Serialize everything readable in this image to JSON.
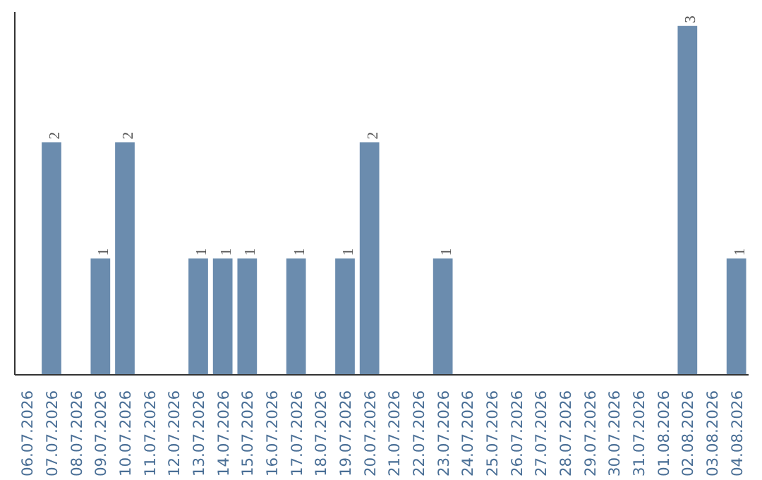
{
  "chart_data": {
    "type": "bar",
    "categories": [
      "06.07.2026",
      "07.07.2026",
      "08.07.2026",
      "09.07.2026",
      "10.07.2026",
      "11.07.2026",
      "12.07.2026",
      "13.07.2026",
      "14.07.2026",
      "15.07.2026",
      "16.07.2026",
      "17.07.2026",
      "18.07.2026",
      "19.07.2026",
      "20.07.2026",
      "21.07.2026",
      "22.07.2026",
      "23.07.2026",
      "24.07.2026",
      "25.07.2026",
      "26.07.2026",
      "27.07.2026",
      "28.07.2026",
      "29.07.2026",
      "30.07.2026",
      "31.07.2026",
      "01.08.2026",
      "02.08.2026",
      "03.08.2026",
      "04.08.2026"
    ],
    "values": [
      0,
      2,
      0,
      1,
      2,
      0,
      0,
      1,
      1,
      1,
      0,
      1,
      0,
      1,
      2,
      0,
      0,
      1,
      0,
      0,
      0,
      0,
      0,
      0,
      0,
      0,
      0,
      3,
      0,
      1
    ],
    "value_labels": [
      null,
      "2",
      null,
      "1",
      "2",
      null,
      null,
      "1",
      "1",
      "1",
      null,
      "1",
      null,
      "1",
      "2",
      null,
      null,
      "1",
      null,
      null,
      null,
      null,
      null,
      null,
      null,
      null,
      null,
      "3",
      null,
      "1"
    ],
    "color": "#6b8cae",
    "grid": false,
    "tick_labels": "x"
  }
}
